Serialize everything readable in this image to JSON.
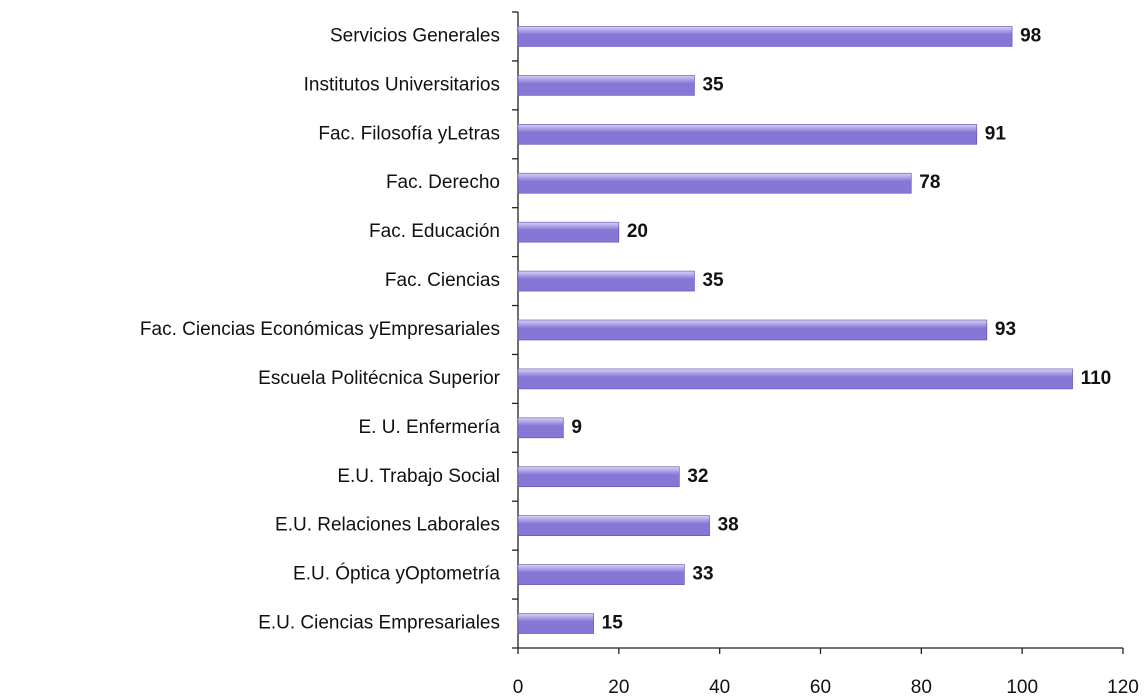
{
  "chart_data": {
    "type": "bar",
    "orientation": "horizontal",
    "categories": [
      "Servicios Generales",
      "Institutos Universitarios",
      "Fac. Filosofía yLetras",
      "Fac. Derecho",
      "Fac. Educación",
      "Fac. Ciencias",
      "Fac. Ciencias Económicas yEmpresariales",
      "Escuela Politécnica Superior",
      "E. U. Enfermería",
      "E.U. Trabajo Social",
      "E.U. Relaciones Laborales",
      "E.U. Óptica yOptometría",
      "E.U. Ciencias Empresariales"
    ],
    "values": [
      98,
      35,
      91,
      78,
      20,
      35,
      93,
      110,
      9,
      32,
      38,
      33,
      15
    ],
    "color": "#8677d6",
    "xlim": [
      0,
      120
    ],
    "xticks": [
      0,
      20,
      40,
      60,
      80,
      100,
      120
    ],
    "grid": false
  }
}
